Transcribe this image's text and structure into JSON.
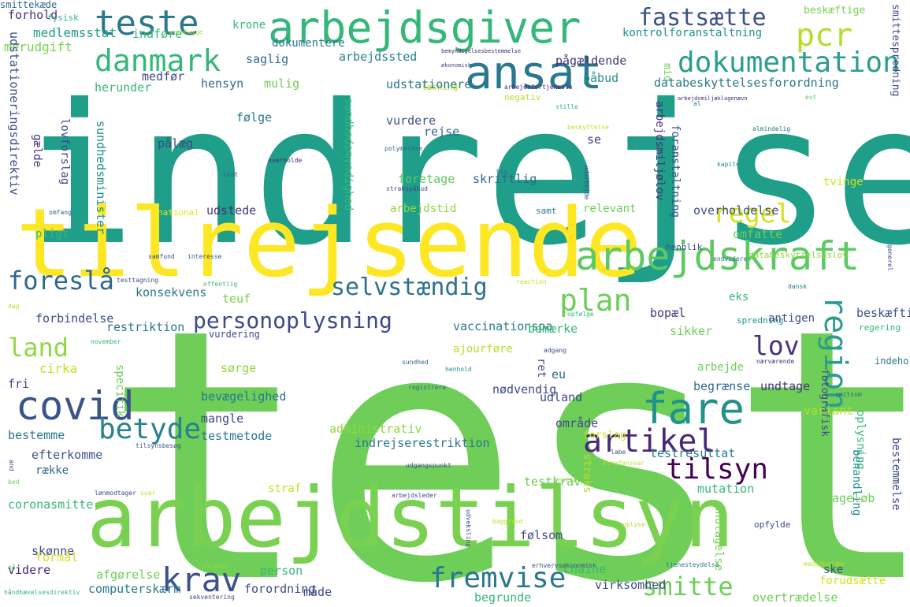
{
  "words": [
    {
      "text": "indrejse",
      "color": "#1f9e89"
    },
    {
      "text": "test",
      "color": "#6ece58"
    },
    {
      "text": "tilrejsende",
      "color": "#fde725"
    },
    {
      "text": "arbejdstilsyn",
      "color": "#7ad151"
    },
    {
      "text": "arbejdsgiver",
      "color": "#35b779"
    },
    {
      "text": "ansat",
      "color": "#2a788e"
    },
    {
      "text": "arbejdskraft",
      "color": "#5ec962"
    },
    {
      "text": "teste",
      "color": "#2a788e"
    },
    {
      "text": "danmark",
      "color": "#35b779"
    },
    {
      "text": "fastsætte",
      "color": "#3b528b"
    },
    {
      "text": "pcr",
      "color": "#b5de2b"
    },
    {
      "text": "dokumentation",
      "color": "#2a9d8f"
    },
    {
      "text": "regel",
      "color": "#d2e21b"
    },
    {
      "text": "foreslå",
      "color": "#31688e"
    },
    {
      "text": "selvstændig",
      "color": "#2c728e"
    },
    {
      "text": "plan",
      "color": "#6ece58"
    },
    {
      "text": "personoplysning",
      "color": "#3e4a89"
    },
    {
      "text": "lov",
      "color": "#46327e"
    },
    {
      "text": "region",
      "color": "#2a9d8f"
    },
    {
      "text": "land",
      "color": "#90d743"
    },
    {
      "text": "covid",
      "color": "#3b528b"
    },
    {
      "text": "fare",
      "color": "#21918c"
    },
    {
      "text": "artikel",
      "color": "#482878"
    },
    {
      "text": "betyde",
      "color": "#26828e"
    },
    {
      "text": "tilsyn",
      "color": "#440154"
    },
    {
      "text": "krav",
      "color": "#3b528b"
    },
    {
      "text": "fremvise",
      "color": "#2a788e"
    },
    {
      "text": "smitte",
      "color": "#6ece58"
    },
    {
      "text": "forhold",
      "color": "#46327e"
    },
    {
      "text": "fysisk",
      "color": "#35b779"
    },
    {
      "text": "medlemsstat",
      "color": "#1f9e89"
    },
    {
      "text": "indføre",
      "color": "#35b779"
    },
    {
      "text": "grundlægge",
      "color": "#a0da39"
    },
    {
      "text": "merudgift",
      "color": "#7ad151"
    },
    {
      "text": "krone",
      "color": "#35b779"
    },
    {
      "text": "dokumentere",
      "color": "#2a788e"
    },
    {
      "text": "saglig",
      "color": "#31688e"
    },
    {
      "text": "arbejdssted",
      "color": "#26828e"
    },
    {
      "text": "bemyndigelsesbestemmelse",
      "color": "#482878"
    },
    {
      "text": "økonomisk",
      "color": "#414487"
    },
    {
      "text": "løsning",
      "color": "#c2df23"
    },
    {
      "text": "medfør",
      "color": "#3e4a89"
    },
    {
      "text": "hensyn",
      "color": "#31688e"
    },
    {
      "text": "herunder",
      "color": "#35b779"
    },
    {
      "text": "mulig",
      "color": "#6ece58"
    },
    {
      "text": "udstationere",
      "color": "#2a788e"
    },
    {
      "text": "negativ",
      "color": "#b5de2b"
    },
    {
      "text": "arbejdsfortjeneste",
      "color": "#482878"
    },
    {
      "text": "påbud",
      "color": "#21918c"
    },
    {
      "text": "pågældende",
      "color": "#46327e"
    },
    {
      "text": "kontrolforanstaltning",
      "color": "#21918c"
    },
    {
      "text": "mio",
      "color": "#6ece58"
    },
    {
      "text": "beskæftige",
      "color": "#7ad151"
    },
    {
      "text": "smittespredning",
      "color": "#3e4a89"
    },
    {
      "text": "databeskyttelsesforordning",
      "color": "#2a788e"
    },
    {
      "text": "udstationeringsdirektiv",
      "color": "#3b528b"
    },
    {
      "text": "lovforslag",
      "color": "#3e4a89"
    },
    {
      "text": "sundhedsminister",
      "color": "#21918c"
    },
    {
      "text": "følge",
      "color": "#2a788e"
    },
    {
      "text": "sundhedsmyndighed",
      "color": "#35b779"
    },
    {
      "text": "vurdere",
      "color": "#3b528b"
    },
    {
      "text": "rejse",
      "color": "#31688e"
    },
    {
      "text": "se",
      "color": "#443983"
    },
    {
      "text": "gælde",
      "color": "#46327e"
    },
    {
      "text": "pålæg",
      "color": "#3e4a89"
    },
    {
      "text": "udstede",
      "color": "#46327e"
    },
    {
      "text": "foretage",
      "color": "#5ec962"
    },
    {
      "text": "skriftlig",
      "color": "#31688e"
    },
    {
      "text": "arbejdstid",
      "color": "#90d743"
    },
    {
      "text": "relevant",
      "color": "#6ece58"
    },
    {
      "text": "arbejdsmiljølov",
      "color": "#46327e"
    },
    {
      "text": "foranstaltning",
      "color": "#3b528b"
    },
    {
      "text": "overholdelse",
      "color": "#3e4a89"
    },
    {
      "text": "omfatte",
      "color": "#6ece58"
    },
    {
      "text": "databeskyttelseslov",
      "color": "#90d743"
    },
    {
      "text": "pligt",
      "color": "#35b779"
    },
    {
      "text": "national",
      "color": "#e5e419"
    },
    {
      "text": "samt",
      "color": "#2a788e"
    },
    {
      "text": "henblik",
      "color": "#3b528b"
    },
    {
      "text": "endvidere",
      "color": "#2c728e"
    },
    {
      "text": "tvinge",
      "color": "#d2e21b"
    },
    {
      "text": "udarbejde",
      "color": "#3e4a89"
    },
    {
      "text": "stille",
      "color": "#35b779"
    },
    {
      "text": "beskyttelse",
      "color": "#c2df23"
    },
    {
      "text": "polymerase",
      "color": "#31688e"
    },
    {
      "text": "overholde",
      "color": "#482878"
    },
    {
      "text": "skat",
      "color": "#31688e"
    },
    {
      "text": "hav",
      "color": "#2a788e"
    },
    {
      "text": "strakspåbud",
      "color": "#3e4a89"
    },
    {
      "text": "almindelig",
      "color": "#2a788e"
    },
    {
      "text": "kapitel",
      "color": "#21918c"
    },
    {
      "text": "al",
      "color": "#26828e"
    },
    {
      "text": "evt",
      "color": "#5ec962"
    },
    {
      "text": "omfang",
      "color": "#31688e"
    },
    {
      "text": "arbejdsmiljøklagenævn",
      "color": "#482878"
    },
    {
      "text": "konsekvens",
      "color": "#2a788e"
    },
    {
      "text": "teuf",
      "color": "#7ad151"
    },
    {
      "text": "forbindelse",
      "color": "#3e4a89"
    },
    {
      "text": "restriktion",
      "color": "#2a788e"
    },
    {
      "text": "samfund",
      "color": "#3e4a89"
    },
    {
      "text": "interesse",
      "color": "#3b528b"
    },
    {
      "text": "testtagning",
      "color": "#3e4a89"
    },
    {
      "text": "offentlig",
      "color": "#35b779"
    },
    {
      "text": "reaction",
      "color": "#c2df23"
    },
    {
      "text": "dag",
      "color": "#b5de2b"
    },
    {
      "text": "eks",
      "color": "#35b779"
    },
    {
      "text": "antigen",
      "color": "#3e4a89"
    },
    {
      "text": "dansk",
      "color": "#2a788e"
    },
    {
      "text": "generel",
      "color": "#3e4a89"
    },
    {
      "text": "vurdering",
      "color": "#3e4a89"
    },
    {
      "text": "vaccinationspa",
      "color": "#2a788e"
    },
    {
      "text": "bemærke",
      "color": "#35b779"
    },
    {
      "text": "bopæl",
      "color": "#46327e"
    },
    {
      "text": "beskæftigelsesminister",
      "color": "#3b528b"
    },
    {
      "text": "sikker",
      "color": "#6ece58"
    },
    {
      "text": "spredning",
      "color": "#21918c"
    },
    {
      "text": "regering",
      "color": "#35b779"
    },
    {
      "text": "opfølge",
      "color": "#35b779"
    },
    {
      "text": "ajourføre",
      "color": "#b5de2b"
    },
    {
      "text": "november",
      "color": "#35b779"
    },
    {
      "text": "cirka",
      "color": "#c2df23"
    },
    {
      "text": "sørge",
      "color": "#90d743"
    },
    {
      "text": "specifik",
      "color": "#6ece58"
    },
    {
      "text": "fri",
      "color": "#3e4a89"
    },
    {
      "text": "bevægelighed",
      "color": "#2a788e"
    },
    {
      "text": "nødvendig",
      "color": "#3e4a89"
    },
    {
      "text": "udland",
      "color": "#3e4a89"
    },
    {
      "text": "ret",
      "color": "#3e4a89"
    },
    {
      "text": "eu",
      "color": "#31688e"
    },
    {
      "text": "arbejde",
      "color": "#6ece58"
    },
    {
      "text": "begrænse",
      "color": "#31688e"
    },
    {
      "text": "undtage",
      "color": "#46327e"
    },
    {
      "text": "adgang",
      "color": "#3e4a89"
    },
    {
      "text": "sundhed",
      "color": "#31688e"
    },
    {
      "text": "henhold",
      "color": "#21918c"
    },
    {
      "text": "nærværende",
      "color": "#46327e"
    },
    {
      "text": "fotografisk",
      "color": "#3e4a89"
    },
    {
      "text": "indeholde",
      "color": "#2a788e"
    },
    {
      "text": "gå",
      "color": "#6ece58"
    },
    {
      "text": "smitsom",
      "color": "#31688e"
    },
    {
      "text": "registrere",
      "color": "#31688e"
    },
    {
      "text": "mangle",
      "color": "#3e4a89"
    },
    {
      "text": "testmetode",
      "color": "#2a788e"
    },
    {
      "text": "bestemme",
      "color": "#2a788e"
    },
    {
      "text": "administrativ",
      "color": "#90d743"
    },
    {
      "text": "indrejserestriktion",
      "color": "#2a788e"
    },
    {
      "text": "efterkomme",
      "color": "#3b528b"
    },
    {
      "text": "testresultat",
      "color": "#2a788e"
    },
    {
      "text": "område",
      "color": "#3e4a89"
    },
    {
      "text": "forslag",
      "color": "#d2e21b"
    },
    {
      "text": "variant",
      "color": "#b5de2b"
    },
    {
      "text": "oplysning",
      "color": "#35b779"
    },
    {
      "text": "behandling",
      "color": "#21918c"
    },
    {
      "text": "bestemmelse",
      "color": "#3e4a89"
    },
    {
      "text": "tilsynsbesøg",
      "color": "#3b528b"
    },
    {
      "text": "and",
      "color": "#3e4a89"
    },
    {
      "text": "række",
      "color": "#31688e"
    },
    {
      "text": "bed",
      "color": "#6ece58"
    },
    {
      "text": "udgangspunkt",
      "color": "#3e4a89"
    },
    {
      "text": "straks",
      "color": "#b5de2b"
    },
    {
      "text": "testkrav",
      "color": "#6ece58"
    },
    {
      "text": "træffe",
      "color": "#90d743"
    },
    {
      "text": "labe",
      "color": "#3e4a89"
    },
    {
      "text": "strafansvar",
      "color": "#c2df23"
    },
    {
      "text": "straf",
      "color": "#c2df23"
    },
    {
      "text": "lønmodtager",
      "color": "#3e4a89"
    },
    {
      "text": "svar",
      "color": "#b5de2b"
    },
    {
      "text": "arbejdsleder",
      "color": "#3e4a89"
    },
    {
      "text": "mutation",
      "color": "#35b779"
    },
    {
      "text": "tilbageløb",
      "color": "#6ece58"
    },
    {
      "text": "coronasmitte",
      "color": "#35b779"
    },
    {
      "text": "undtagelse",
      "color": "#7ad151"
    },
    {
      "text": "følsom",
      "color": "#3e4a89"
    },
    {
      "text": "skønne",
      "color": "#3e4a89"
    },
    {
      "text": "formål",
      "color": "#d2e21b"
    },
    {
      "text": "litra",
      "color": "#6ece58"
    },
    {
      "text": "udveksling",
      "color": "#3e4a89"
    },
    {
      "text": "baggrund",
      "color": "#c2df23"
    },
    {
      "text": "oplyse",
      "color": "#b5de2b"
    },
    {
      "text": "opfylde",
      "color": "#3e4a89"
    },
    {
      "text": "nå",
      "color": "#6ece58"
    },
    {
      "text": "videre",
      "color": "#482878"
    },
    {
      "text": "afgørelse",
      "color": "#6ece58"
    },
    {
      "text": "person",
      "color": "#35b779"
    },
    {
      "text": "pålægge",
      "color": "#90d743"
    },
    {
      "text": "erhvervsøkonomisk",
      "color": "#3e4a89"
    },
    {
      "text": "chaine",
      "color": "#35b779"
    },
    {
      "text": "tjenesteydelse",
      "color": "#2a788e"
    },
    {
      "text": "medarbejder",
      "color": "#c2df23"
    },
    {
      "text": "ske",
      "color": "#3e4a89"
    },
    {
      "text": "forudsætte",
      "color": "#d2e21b"
    },
    {
      "text": "computerskærm",
      "color": "#2a788e"
    },
    {
      "text": "forordning",
      "color": "#3e4a89"
    },
    {
      "text": "måde",
      "color": "#3e4a89"
    },
    {
      "text": "virksomhed",
      "color": "#3e4a89"
    },
    {
      "text": "begrunde",
      "color": "#35b779"
    },
    {
      "text": "overtrædelse",
      "color": "#6ece58"
    },
    {
      "text": "håndhævelsesdirektiv",
      "color": "#35b779"
    },
    {
      "text": "sekventering",
      "color": "#3e4a89"
    },
    {
      "text": "smittekæde",
      "color": "#31688e"
    }
  ]
}
